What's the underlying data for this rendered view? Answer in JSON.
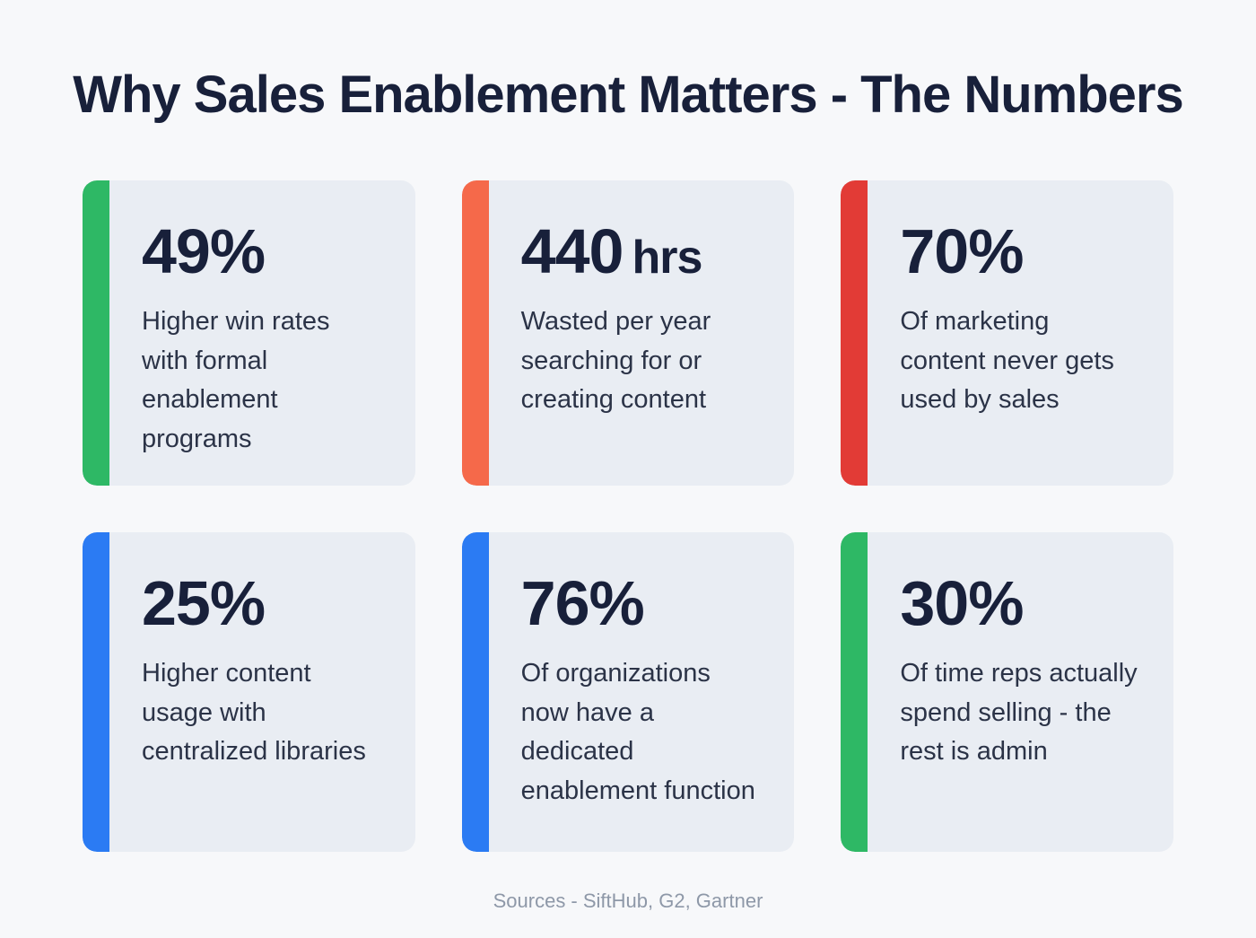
{
  "page": {
    "title": "Why Sales Enablement Matters - The Numbers",
    "footer": "Sources - SiftHub, G2, Gartner"
  },
  "colors": {
    "green": "#2eb865",
    "orange": "#f5694a",
    "red": "#e23b36",
    "blue": "#2b7bf3",
    "title_text": "#18203a",
    "card_background": "#e9edf3",
    "page_background": "#f7f8fa",
    "footer_text": "#8e98a8"
  },
  "cards": [
    {
      "value": "49%",
      "unit": "",
      "description": "Higher win rates with formal enablement programs",
      "accent": "green"
    },
    {
      "value": "440",
      "unit": "hrs",
      "description": "Wasted per year searching for or creating content",
      "accent": "orange"
    },
    {
      "value": "70%",
      "unit": "",
      "description": "Of marketing content never gets used by sales",
      "accent": "red"
    },
    {
      "value": "25%",
      "unit": "",
      "description": "Higher content usage with centralized libraries",
      "accent": "blue"
    },
    {
      "value": "76%",
      "unit": "",
      "description": "Of organizations now have a dedicated enablement function",
      "accent": "blue"
    },
    {
      "value": "30%",
      "unit": "",
      "description": "Of time reps actually spend selling - the rest is admin",
      "accent": "green"
    }
  ]
}
